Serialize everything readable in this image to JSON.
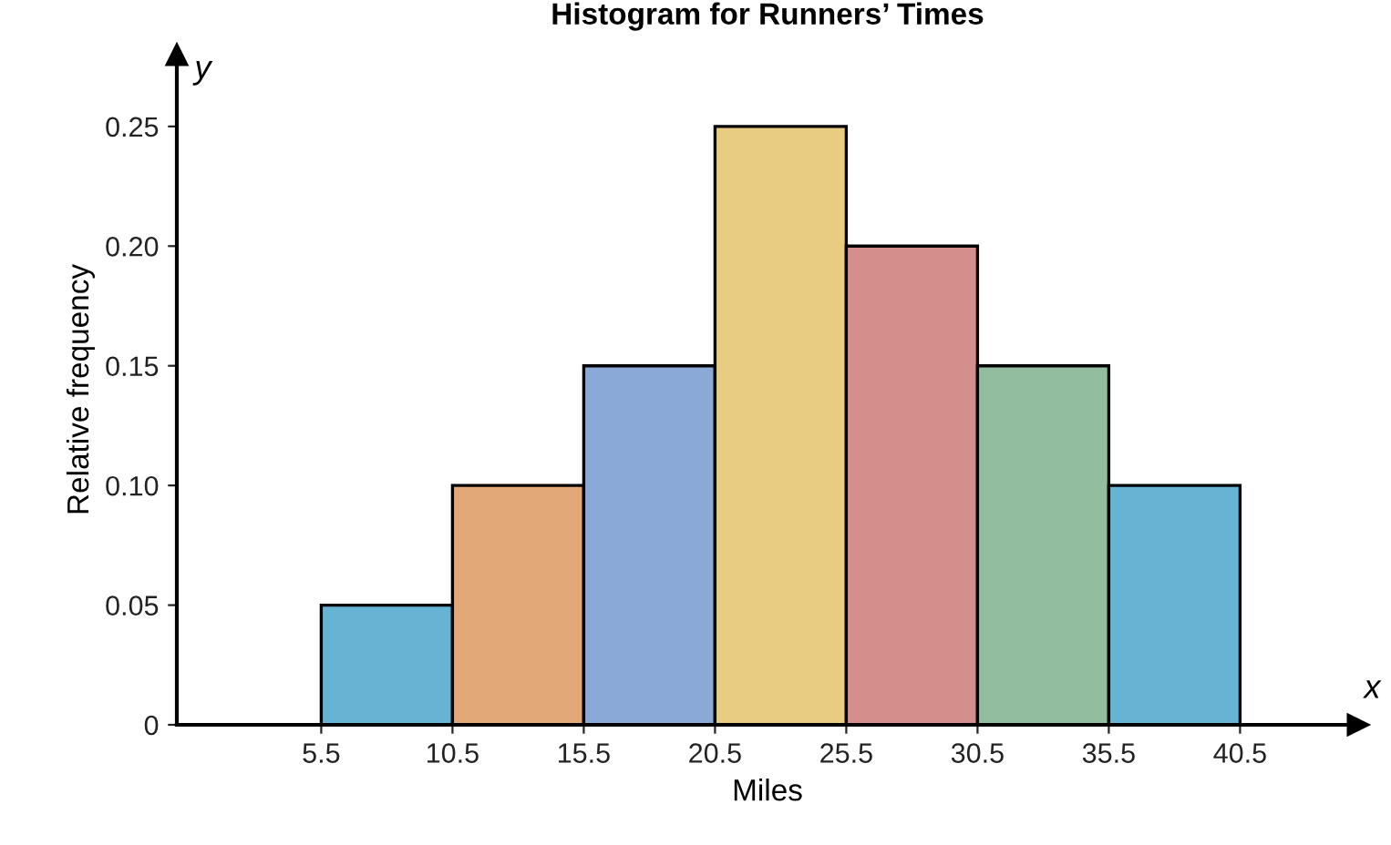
{
  "chart_data": {
    "type": "histogram",
    "title": "Histogram for Runners’ Times",
    "xlabel": "Miles",
    "ylabel": "Relative frequency",
    "bins": [
      5.5,
      10.5,
      15.5,
      20.5,
      25.5,
      30.5,
      35.5,
      40.5
    ],
    "values": [
      0.05,
      0.1,
      0.15,
      0.25,
      0.2,
      0.15,
      0.1
    ],
    "colors": [
      "#67b3d4",
      "#e3a878",
      "#8aa9d6",
      "#e8cc82",
      "#d48f8d",
      "#93bd9f",
      "#67b3d4"
    ],
    "xlim": [
      0,
      45
    ],
    "ylim": [
      0,
      0.28
    ],
    "xticks": [
      {
        "value": 5.5,
        "label": "5.5"
      },
      {
        "value": 10.5,
        "label": "10.5"
      },
      {
        "value": 15.5,
        "label": "15.5"
      },
      {
        "value": 20.5,
        "label": "20.5"
      },
      {
        "value": 25.5,
        "label": "25.5"
      },
      {
        "value": 30.5,
        "label": "30.5"
      },
      {
        "value": 35.5,
        "label": "35.5"
      },
      {
        "value": 40.5,
        "label": "40.5"
      }
    ],
    "yticks": [
      0,
      {
        "value": 0.05,
        "label": "0.05"
      },
      {
        "value": 0.1,
        "label": "0.10"
      },
      {
        "value": 0.15,
        "label": "0.15"
      },
      {
        "value": 0.2,
        "label": "0.20"
      },
      {
        "value": 0.25,
        "label": "0.25"
      }
    ],
    "annotations": [
      "y",
      "x"
    ],
    "grid": false
  }
}
